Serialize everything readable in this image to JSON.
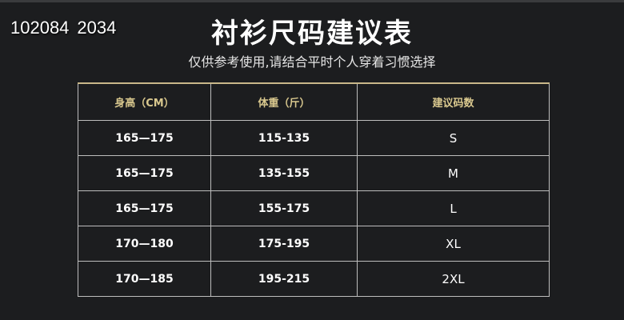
{
  "stamp": {
    "primary": "102084",
    "overlay": "2034"
  },
  "title": "衬衫尺码建议表",
  "subtitle": "仅供参考使用,请结合平时个人穿着习惯选择",
  "table": {
    "headers": [
      "身高（CM）",
      "体重（斤）",
      "建议码数"
    ],
    "rows": [
      [
        "165—175",
        "115-135",
        "S"
      ],
      [
        "165—175",
        "135-155",
        "M"
      ],
      [
        "165—175",
        "155-175",
        "L"
      ],
      [
        "170—180",
        "175-195",
        "XL"
      ],
      [
        "170—185",
        "195-215",
        "2XL"
      ]
    ]
  },
  "colors": {
    "background": "#1c1d1f",
    "header_text": "#d9c88e",
    "border": "#bdbdbd"
  }
}
